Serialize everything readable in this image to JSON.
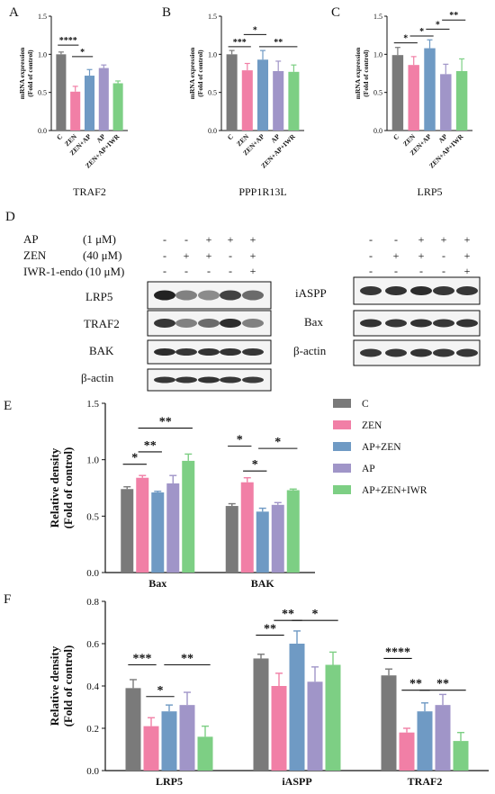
{
  "panel_letters": {
    "a": "A",
    "b": "B",
    "c": "C",
    "d": "D",
    "e": "E",
    "f": "F"
  },
  "colors": {
    "C": "#7a7a7a",
    "ZEN": "#f17fa6",
    "AP+ZEN": "#6f9ac4",
    "AP": "#a095c8",
    "AP+ZEN+IWR": "#7dcf84"
  },
  "chart_data": [
    {
      "type": "bar",
      "title": "TRAF2",
      "ylabel": "mRNA expression (Fold of control)",
      "ylabel_line1": "mRNA expression",
      "ylabel_line2": "(Fold of control)",
      "ylim": [
        0,
        1.5
      ],
      "yticks": [
        "0.0",
        "0.5",
        "1.0",
        "1.5"
      ],
      "categories": [
        "C",
        "ZEN",
        "ZEN+AP",
        "AP",
        "ZEN+AP+IWR"
      ],
      "values": [
        1.0,
        0.51,
        0.72,
        0.82,
        0.62
      ],
      "errors": [
        0.03,
        0.07,
        0.08,
        0.04,
        0.03
      ],
      "significance": [
        {
          "from": 0,
          "to": 1,
          "label": "****",
          "level": 1.12
        },
        {
          "from": 1,
          "to": 2,
          "label": "*",
          "level": 0.97
        }
      ]
    },
    {
      "type": "bar",
      "title": "PPP1R13L",
      "ylabel": "mRNA expression (Fold of control)",
      "ylabel_line1": "mRNA expression",
      "ylabel_line2": "(Fold of control)",
      "ylim": [
        0,
        1.5
      ],
      "yticks": [
        "0.0",
        "0.5",
        "1.0",
        "1.5"
      ],
      "categories": [
        "C",
        "ZEN",
        "ZEN+AP",
        "AP",
        "ZEN+AP+IWR"
      ],
      "values": [
        1.0,
        0.79,
        0.93,
        0.78,
        0.77
      ],
      "errors": [
        0.05,
        0.09,
        0.12,
        0.13,
        0.09
      ],
      "significance": [
        {
          "from": 0,
          "to": 1,
          "label": "***",
          "level": 1.1
        },
        {
          "from": 1,
          "to": 2,
          "label": "*",
          "level": 1.26
        },
        {
          "from": 2,
          "to": 4,
          "label": "**",
          "level": 1.1
        }
      ]
    },
    {
      "type": "bar",
      "title": "LRP5",
      "ylabel": "mRNA expression (Fold of control)",
      "ylabel_line1": "mRNA expression",
      "ylabel_line2": "(Fold of control)",
      "ylim": [
        0,
        1.5
      ],
      "yticks": [
        "0.0",
        "0.5",
        "1.0",
        "1.5"
      ],
      "categories": [
        "C",
        "ZEN",
        "ZEN+AP",
        "AP",
        "ZEN+AP+IWR"
      ],
      "values": [
        0.99,
        0.86,
        1.08,
        0.74,
        0.78
      ],
      "errors": [
        0.1,
        0.11,
        0.11,
        0.13,
        0.16
      ],
      "significance": [
        {
          "from": 0,
          "to": 1,
          "label": "*",
          "level": 1.15
        },
        {
          "from": 1,
          "to": 2,
          "label": "*",
          "level": 1.24
        },
        {
          "from": 2,
          "to": 3,
          "label": "*",
          "level": 1.33
        },
        {
          "from": 3,
          "to": 4,
          "label": "**",
          "level": 1.45
        }
      ]
    },
    {
      "type": "bar",
      "ylabel": "Relative density (Fold of control)",
      "ylabel_line1": "Relative density",
      "ylabel_line2": "(Fold of control)",
      "ylim": [
        0,
        1.5
      ],
      "yticks": [
        "0.0",
        "0.5",
        "1.0",
        "1.5"
      ],
      "categories": [
        "Bax",
        "BAK"
      ],
      "series": [
        {
          "name": "C",
          "values": [
            0.74,
            0.59
          ],
          "errors": [
            0.02,
            0.02
          ]
        },
        {
          "name": "ZEN",
          "values": [
            0.84,
            0.8
          ],
          "errors": [
            0.02,
            0.04
          ]
        },
        {
          "name": "AP+ZEN",
          "values": [
            0.71,
            0.54
          ],
          "errors": [
            0.01,
            0.03
          ]
        },
        {
          "name": "AP",
          "values": [
            0.79,
            0.6
          ],
          "errors": [
            0.07,
            0.02
          ]
        },
        {
          "name": "AP+ZEN+IWR",
          "values": [
            0.99,
            0.73
          ],
          "errors": [
            0.06,
            0.01
          ]
        }
      ],
      "legend_position": "right",
      "significance": [
        {
          "group": 0,
          "from": 0,
          "to": 1,
          "label": "*",
          "level": 0.96
        },
        {
          "group": 0,
          "from": 1,
          "to": 2,
          "label": "**",
          "level": 1.07
        },
        {
          "group": 0,
          "from": 1,
          "to": 4,
          "label": "**",
          "level": 1.28
        },
        {
          "group": 1,
          "from": 0,
          "to": 1,
          "label": "*",
          "level": 1.12
        },
        {
          "group": 1,
          "from": 1,
          "to": 2,
          "label": "*",
          "level": 0.9
        },
        {
          "group": 1,
          "from": 2,
          "to": 4,
          "label": "*",
          "level": 1.1
        }
      ]
    },
    {
      "type": "bar",
      "ylabel": "Relative density (Fold of control)",
      "ylabel_line1": "Relative density",
      "ylabel_line2": "(Fold of control)",
      "ylim": [
        0,
        0.8
      ],
      "yticks": [
        "0.0",
        "0.2",
        "0.4",
        "0.6",
        "0.8"
      ],
      "categories": [
        "LRP5",
        "iASPP",
        "TRAF2"
      ],
      "series": [
        {
          "name": "C",
          "values": [
            0.39,
            0.53,
            0.45
          ],
          "errors": [
            0.04,
            0.02,
            0.03
          ]
        },
        {
          "name": "ZEN",
          "values": [
            0.21,
            0.4,
            0.18
          ],
          "errors": [
            0.04,
            0.06,
            0.02
          ]
        },
        {
          "name": "AP+ZEN",
          "values": [
            0.28,
            0.6,
            0.28
          ],
          "errors": [
            0.03,
            0.06,
            0.04
          ]
        },
        {
          "name": "AP",
          "values": [
            0.31,
            0.42,
            0.31
          ],
          "errors": [
            0.06,
            0.07,
            0.05
          ]
        },
        {
          "name": "AP+ZEN+IWR",
          "values": [
            0.16,
            0.5,
            0.14
          ],
          "errors": [
            0.05,
            0.06,
            0.04
          ]
        }
      ],
      "significance": [
        {
          "group": 0,
          "from": 0,
          "to": 1,
          "label": "***",
          "level": 0.5
        },
        {
          "group": 0,
          "from": 1,
          "to": 2,
          "label": "*",
          "level": 0.35
        },
        {
          "group": 0,
          "from": 2,
          "to": 4,
          "label": "**",
          "level": 0.5
        },
        {
          "group": 1,
          "from": 0,
          "to": 1,
          "label": "**",
          "level": 0.64
        },
        {
          "group": 1,
          "from": 1,
          "to": 2,
          "label": "**",
          "level": 0.71
        },
        {
          "group": 1,
          "from": 2,
          "to": 4,
          "label": "*",
          "level": 0.71
        },
        {
          "group": 2,
          "from": 0,
          "to": 1,
          "label": "****",
          "level": 0.53
        },
        {
          "group": 2,
          "from": 1,
          "to": 2,
          "label": "**",
          "level": 0.38
        },
        {
          "group": 2,
          "from": 2,
          "to": 4,
          "label": "**",
          "level": 0.38
        }
      ]
    }
  ],
  "blot": {
    "treatments": [
      {
        "name": "AP",
        "conc": "(1 μM)",
        "signs": [
          "-",
          "-",
          "+",
          "+",
          "+"
        ]
      },
      {
        "name": "ZEN",
        "conc": "(40 μM)",
        "signs": [
          "-",
          "+",
          "+",
          "-",
          "+"
        ]
      },
      {
        "name": "IWR-1-endo (10 μM)",
        "conc": "",
        "signs": [
          "-",
          "-",
          "-",
          "-",
          "+"
        ]
      }
    ],
    "left_bands": [
      "LRP5",
      "TRAF2",
      "BAK",
      "β-actin"
    ],
    "right_bands": [
      "iASPP",
      "Bax",
      "β-actin"
    ]
  }
}
